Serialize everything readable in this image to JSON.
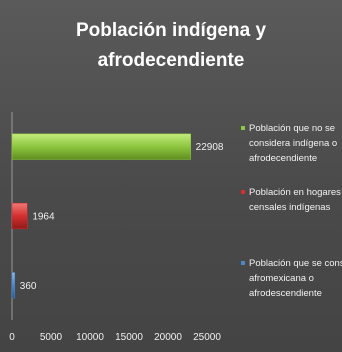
{
  "chart_data": {
    "type": "bar",
    "orientation": "horizontal",
    "title_lines": [
      "Población indígena y",
      "afrodecendiente"
    ],
    "xlabel": "",
    "ylabel": "",
    "xlim": [
      0,
      25000
    ],
    "x_ticks": [
      0,
      5000,
      10000,
      15000,
      20000,
      25000
    ],
    "grid": false,
    "legend_position": "right",
    "data_labels_shown": true,
    "series": [
      {
        "legend_lines": [
          "Población que no se",
          "considera indígena o",
          "afrodecendiente"
        ],
        "value": 22908,
        "color": "#8dc63f"
      },
      {
        "legend_lines": [
          "Población en hogares",
          "censales indígenas"
        ],
        "value": 1964,
        "color": "#d2302f"
      },
      {
        "legend_lines": [
          "Población que se conside",
          "afromexicana o",
          "afrodescendiente"
        ],
        "value": 360,
        "color": "#4a86c8"
      }
    ]
  }
}
